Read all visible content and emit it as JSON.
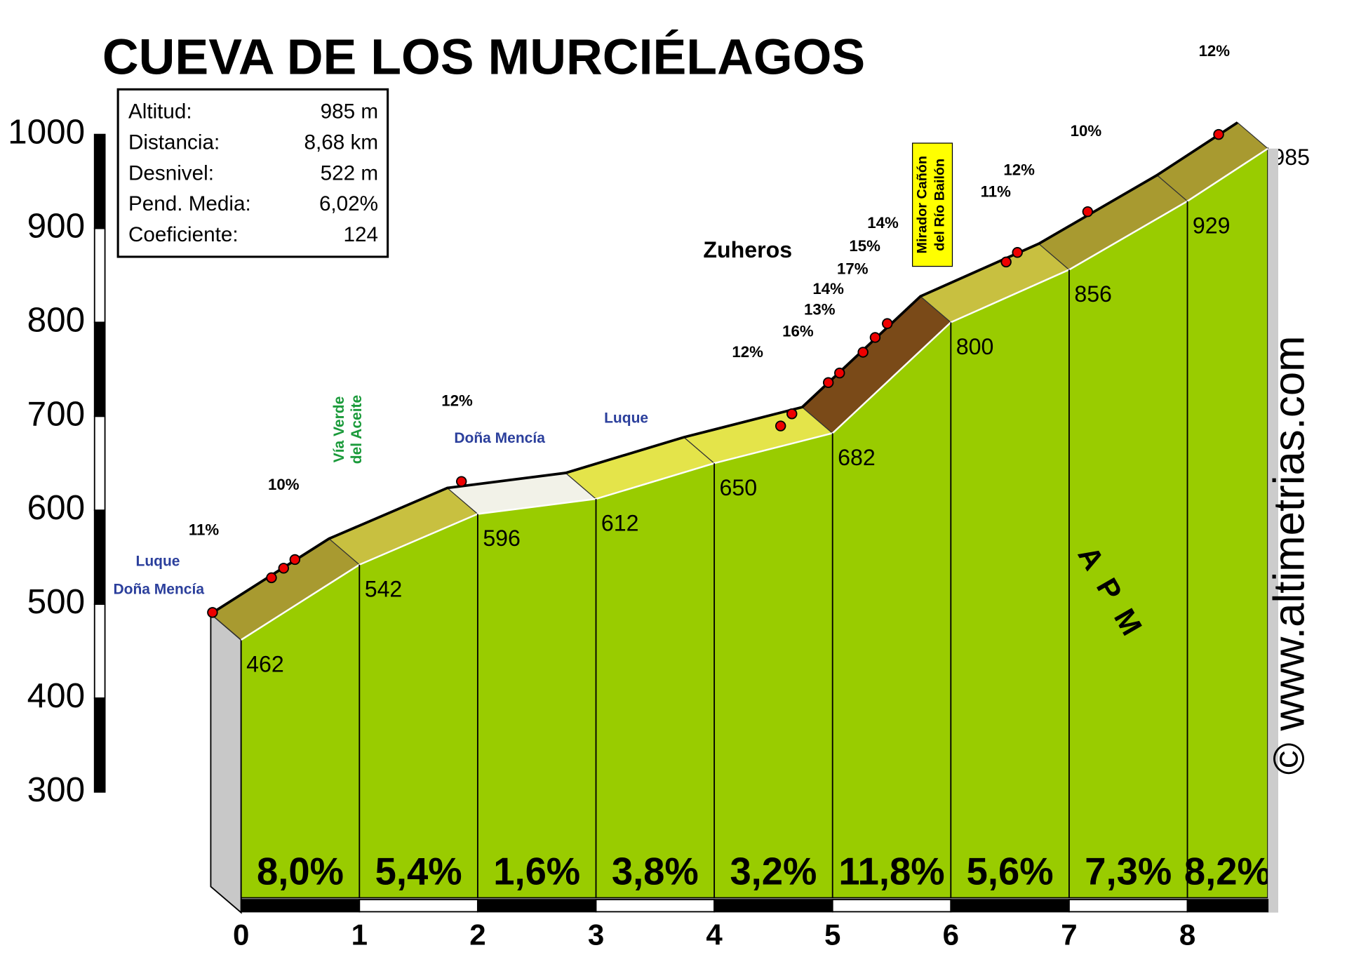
{
  "chart_data": {
    "type": "profile",
    "title": "CUEVA DE LOS MURCIÉLAGOS",
    "stats": [
      [
        "Altitud:",
        "985 m"
      ],
      [
        "Distancia:",
        "8,68 km"
      ],
      [
        "Desnivel:",
        "522 m"
      ],
      [
        "Pend. Media:",
        "6,02%"
      ],
      [
        "Coeficiente:",
        "124"
      ]
    ],
    "x": [
      0,
      1,
      2,
      3,
      4,
      5,
      6,
      7,
      8,
      8.68
    ],
    "values": [
      462,
      542,
      596,
      612,
      650,
      682,
      800,
      856,
      929,
      985
    ],
    "segments": {
      "values": [
        8.0,
        5.4,
        1.6,
        3.8,
        3.2,
        11.8,
        5.6,
        7.3,
        8.2
      ],
      "value_labels": [
        "8,0%",
        "5,4%",
        "1,6%",
        "3,8%",
        "3,2%",
        "11,8%",
        "5,6%",
        "7,3%",
        "8,2%"
      ]
    },
    "xlim": [
      0,
      8.68
    ],
    "xticks": [
      0,
      1,
      2,
      3,
      4,
      5,
      6,
      7,
      8
    ],
    "ylim": [
      300,
      1000
    ],
    "yticks": [
      300,
      400,
      500,
      600,
      700,
      800,
      900,
      1000
    ],
    "color": "#99cc00",
    "annotations": [
      "11%",
      "10%",
      "12%",
      "12%",
      "16%",
      "13%",
      "14%",
      "17%",
      "15%",
      "14%",
      "11%",
      "12%",
      "10%",
      "12%",
      "Zuheros",
      "Luque",
      "Doña Mencía",
      "Doña Mencía",
      "Luque",
      "Vía Verde",
      "del Aceite",
      "Mirador Cañón",
      "del Río Bailón",
      "© www.altimetrias.com",
      "APM"
    ]
  }
}
